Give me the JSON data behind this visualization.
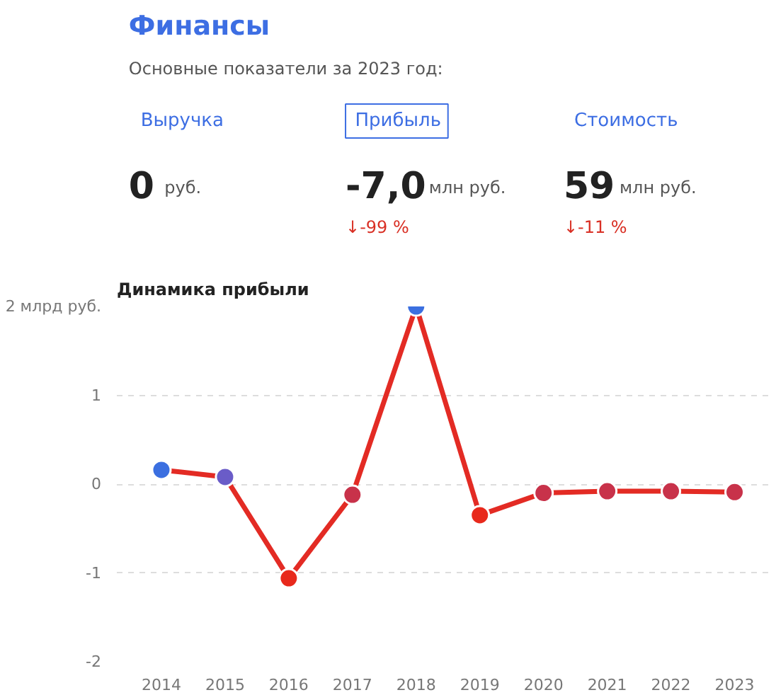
{
  "chart_data": [
    {
      "type": "other",
      "title": "Финансы",
      "subtitle": "Основные показатели за 2023 год:",
      "annotations": [
        "Выручка",
        "0",
        "руб.",
        "Прибыль",
        "-7,0",
        "млн руб.",
        "↓-99 %",
        "Стоимость",
        "59",
        "млн руб.",
        "↓-11 %"
      ]
    },
    {
      "type": "line",
      "title": "Динамика прибыли",
      "categories": [
        "2014",
        "2015",
        "2016",
        "2017",
        "2018",
        "2019",
        "2020",
        "2021",
        "2022",
        "2023"
      ],
      "series": [
        {
          "color": "#e32b24",
          "values": [
            0.16,
            0.08,
            -1.06,
            -0.12,
            2.0,
            -0.35,
            -0.1,
            -0.08,
            -0.08,
            -0.09
          ],
          "colors": [
            "#3b6fe0",
            "#6a5cc8",
            "#e8291c",
            "#c8324a",
            "#3b6fe0",
            "#e8291c",
            "#c8324a",
            "#c8324a",
            "#c8324a",
            "#c8324a"
          ]
        }
      ],
      "ylim": [
        -2,
        2
      ],
      "yticks": [
        -2,
        -1,
        0,
        1,
        {
          "value": 2,
          "label": "2 млрд руб."
        }
      ],
      "grid": "y",
      "marker": "circle",
      "line_style": "solid"
    }
  ]
}
